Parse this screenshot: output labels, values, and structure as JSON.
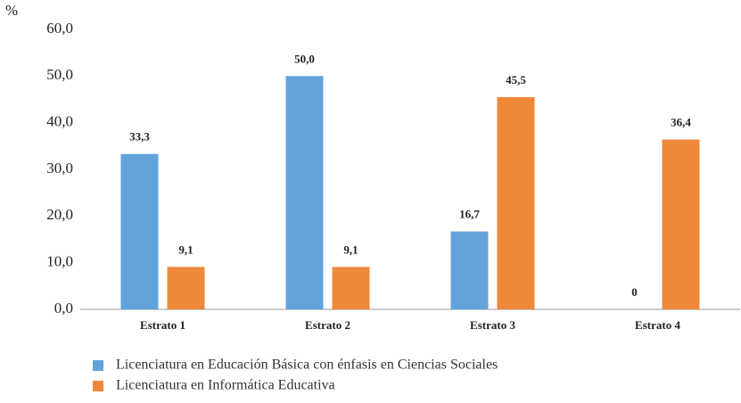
{
  "chart_data": {
    "type": "bar",
    "ylabel": "%",
    "categories": [
      "Estrato 1",
      "Estrato 2",
      "Estrato 3",
      "Estrato 4"
    ],
    "series": [
      {
        "name": "Licenciatura en Educación Básica con énfasis en Ciencias Sociales",
        "color": "#62a3dc",
        "values": [
          33.3,
          50.0,
          16.7,
          0
        ],
        "value_labels": [
          "33,3",
          "50,0",
          "16,7",
          "0"
        ]
      },
      {
        "name": "Licenciatura en Informática Educativa",
        "color": "#f0883a",
        "values": [
          9.1,
          9.1,
          45.5,
          36.4
        ],
        "value_labels": [
          "9,1",
          "9,1",
          "45,5",
          "36,4"
        ]
      }
    ],
    "ylim": [
      0,
      60
    ],
    "yticks": [
      {
        "value": 0,
        "label": "0,0"
      },
      {
        "value": 10,
        "label": "10,0"
      },
      {
        "value": 20,
        "label": "20,0"
      },
      {
        "value": 30,
        "label": "30,0"
      },
      {
        "value": 40,
        "label": "40,0"
      },
      {
        "value": 50,
        "label": "50,0"
      },
      {
        "value": 60,
        "label": "60,0"
      }
    ],
    "grid": false,
    "legend": "bottom"
  }
}
